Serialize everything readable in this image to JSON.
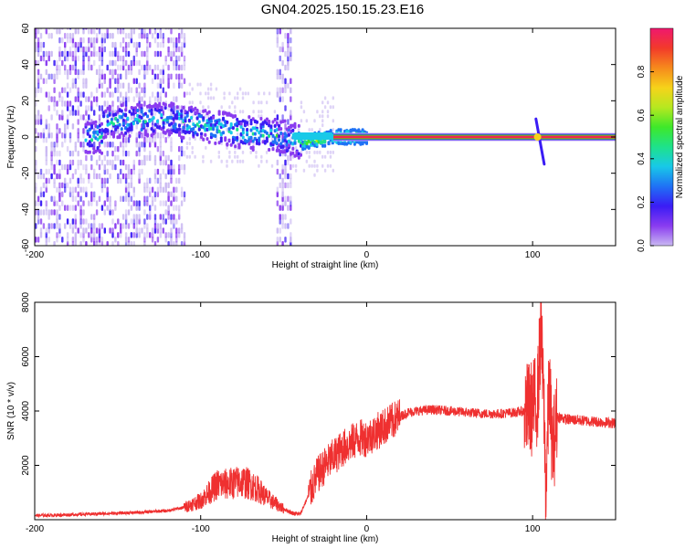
{
  "title": "GN04.2025.150.15.23.E16",
  "chart_data": [
    {
      "type": "heatmap",
      "xlabel": "Height of straight line (km)",
      "ylabel": "Frequency (Hz)",
      "xlim": [
        -200,
        150
      ],
      "ylim": [
        -60,
        60
      ],
      "x_ticks": [
        "-200",
        "-100",
        "0",
        "100"
      ],
      "y_ticks": [
        "60",
        "40",
        "20",
        "0",
        "-20",
        "-40",
        "-60"
      ],
      "colorbar": {
        "label": "Normalized spectral amplitude",
        "range": [
          0,
          1
        ],
        "ticks": [
          "0.0",
          "0.2",
          "0.4",
          "0.6",
          "0.8"
        ],
        "colors": [
          "#c9b8f2",
          "#8a3cf0",
          "#3a1cf5",
          "#1f72f5",
          "#18c9e8",
          "#1ee28a",
          "#3ee82a",
          "#b6e820",
          "#f6d21a",
          "#f68a1c",
          "#f23a2a",
          "#f0186e"
        ]
      },
      "ridge": [
        {
          "x": -160,
          "y": 8
        },
        {
          "x": -120,
          "y": 10
        },
        {
          "x": -90,
          "y": 5
        },
        {
          "x": -70,
          "y": 2
        },
        {
          "x": -50,
          "y": 0
        },
        {
          "x": -40,
          "y": -3
        },
        {
          "x": -20,
          "y": 0
        },
        {
          "x": 0,
          "y": 0
        },
        {
          "x": 100,
          "y": 0
        },
        {
          "x": 150,
          "y": 0
        }
      ],
      "noise_regions": [
        {
          "x_from": -200,
          "x_to": -110
        },
        {
          "x_from": -55,
          "x_to": -45
        }
      ],
      "dispersion_feature": {
        "x": 103,
        "y_from": 10,
        "y_to": -15
      },
      "grid": false
    },
    {
      "type": "line",
      "xlabel": "Height of straight line (km)",
      "ylabel": "SNR (10 * v/v)",
      "xlim": [
        -200,
        150
      ],
      "ylim": [
        0,
        8000
      ],
      "x_ticks": [
        "-200",
        "-100",
        "0",
        "100"
      ],
      "y_ticks": [
        "8000",
        "6000",
        "4000",
        "2000"
      ],
      "color": "#ef3030",
      "series": [
        {
          "x": [
            -200,
            -180,
            -160,
            -140,
            -120,
            -110,
            -100,
            -95,
            -90,
            -85,
            -80,
            -75,
            -70,
            -65,
            -60,
            -55,
            -50,
            -45,
            -40,
            -35,
            -30,
            -25,
            -20,
            -15,
            -10,
            -5,
            0,
            5,
            10,
            15,
            20,
            25,
            30,
            40,
            50,
            60,
            70,
            80,
            90,
            95,
            100,
            103,
            105,
            107,
            108,
            110,
            112,
            115,
            120,
            130,
            140,
            150
          ],
          "values": [
            150,
            180,
            220,
            260,
            330,
            450,
            700,
            1000,
            1300,
            1300,
            1350,
            1400,
            1300,
            1100,
            800,
            600,
            400,
            250,
            200,
            900,
            1600,
            2000,
            2300,
            2600,
            2800,
            3000,
            3000,
            3200,
            3400,
            3600,
            3800,
            3950,
            4000,
            4050,
            4000,
            3950,
            3900,
            3900,
            3950,
            4000,
            4100,
            4500,
            7000,
            3800,
            1000,
            5000,
            2500,
            3800,
            3700,
            3650,
            3600,
            3550
          ]
        }
      ]
    }
  ]
}
